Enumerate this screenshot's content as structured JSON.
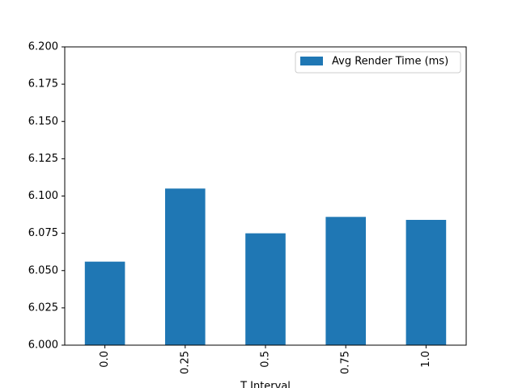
{
  "chart_data": {
    "type": "bar",
    "x_label": "T Interval",
    "categories": [
      "0.0",
      "0.25",
      "0.5",
      "0.75",
      "1.0"
    ],
    "series": [
      {
        "name": "Avg Render Time (ms)",
        "color": "#1f77b4",
        "values": [
          6.056,
          6.105,
          6.075,
          6.086,
          6.084
        ]
      }
    ],
    "ylim": [
      6.0,
      6.2
    ],
    "yticks": [
      {
        "value": 6.0,
        "label": "6.000"
      },
      {
        "value": 6.025,
        "label": "6.025"
      },
      {
        "value": 6.05,
        "label": "6.050"
      },
      {
        "value": 6.075,
        "label": "6.075"
      },
      {
        "value": 6.1,
        "label": "6.100"
      },
      {
        "value": 6.125,
        "label": "6.125"
      },
      {
        "value": 6.15,
        "label": "6.150"
      },
      {
        "value": 6.175,
        "label": "6.175"
      },
      {
        "value": 6.2,
        "label": "6.200"
      }
    ],
    "legend": "upper right",
    "grid": false
  }
}
